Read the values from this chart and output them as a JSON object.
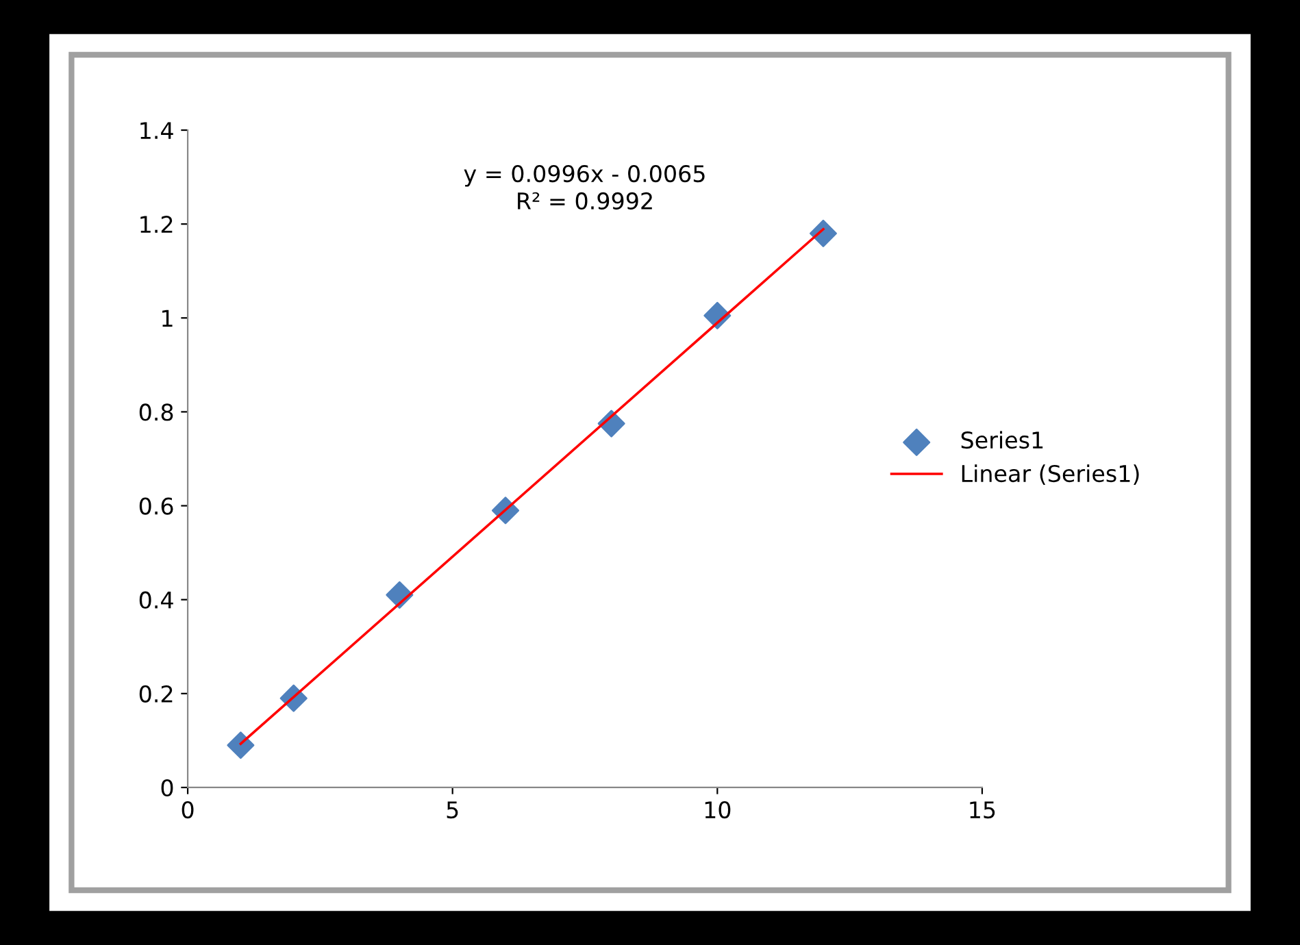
{
  "chart_data": {
    "type": "scatter",
    "xlim": [
      0,
      15
    ],
    "ylim": [
      0,
      1.4
    ],
    "xticks": [
      0,
      5,
      10,
      15
    ],
    "yticks": [
      0,
      0.2,
      0.4,
      0.6,
      0.8,
      1,
      1.2,
      1.4
    ],
    "grid": false,
    "legend": "right",
    "marker": "diamond",
    "annotations": [
      "y = 0.0996x - 0.0065",
      "R² = 0.9992"
    ],
    "series": [
      {
        "name": "Series1",
        "color": "#4f81bd",
        "x": [
          1,
          2,
          4,
          6,
          8,
          10,
          12
        ],
        "values": [
          0.09,
          0.19,
          0.41,
          0.59,
          0.775,
          1.005,
          1.18
        ]
      },
      {
        "name": "Linear (Series1)",
        "type": "line",
        "color": "#ff0000",
        "marker": "none",
        "line_style": "solid",
        "x": [
          1,
          12
        ],
        "values": [
          0.093,
          1.189
        ]
      }
    ]
  }
}
